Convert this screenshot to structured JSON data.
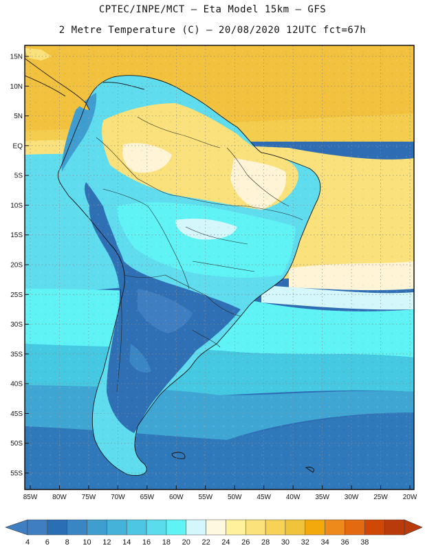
{
  "title_line1": "CPTEC/INPE/MCT –  Eta Model 15km – GFS",
  "title_line2": "2 Metre Temperature (C) – 20/08/2020 12UTC fct=67h",
  "lon_ticks": [
    {
      "value": -85,
      "label": "85W"
    },
    {
      "value": -80,
      "label": "80W"
    },
    {
      "value": -75,
      "label": "75W"
    },
    {
      "value": -70,
      "label": "70W"
    },
    {
      "value": -65,
      "label": "65W"
    },
    {
      "value": -60,
      "label": "60W"
    },
    {
      "value": -55,
      "label": "55W"
    },
    {
      "value": -50,
      "label": "50W"
    },
    {
      "value": -45,
      "label": "45W"
    },
    {
      "value": -40,
      "label": "40W"
    },
    {
      "value": -35,
      "label": "35W"
    },
    {
      "value": -30,
      "label": "30W"
    },
    {
      "value": -25,
      "label": "25W"
    },
    {
      "value": -20,
      "label": "20W"
    }
  ],
  "lat_ticks": [
    {
      "value": 15,
      "label": "15N"
    },
    {
      "value": 10,
      "label": "10N"
    },
    {
      "value": 5,
      "label": "5N"
    },
    {
      "value": 0,
      "label": "EQ"
    },
    {
      "value": -5,
      "label": "5S"
    },
    {
      "value": -10,
      "label": "10S"
    },
    {
      "value": -15,
      "label": "15S"
    },
    {
      "value": -20,
      "label": "20S"
    },
    {
      "value": -25,
      "label": "25S"
    },
    {
      "value": -30,
      "label": "30S"
    },
    {
      "value": -35,
      "label": "35S"
    },
    {
      "value": -40,
      "label": "40S"
    },
    {
      "value": -45,
      "label": "45S"
    },
    {
      "value": -50,
      "label": "50S"
    },
    {
      "value": -55,
      "label": "55S"
    }
  ],
  "colorbar": {
    "labels": [
      "4",
      "6",
      "8",
      "10",
      "12",
      "14",
      "16",
      "18",
      "20",
      "22",
      "24",
      "26",
      "28",
      "30",
      "32",
      "34",
      "36",
      "38"
    ],
    "colors": [
      "#3f7ec0",
      "#2a6fb5",
      "#3a86c4",
      "#3f9ecf",
      "#45b3d9",
      "#4cc6e3",
      "#5adcec",
      "#5ff3f5",
      "#d4f7fc",
      "#fff8e0",
      "#fff29a",
      "#fbe27a",
      "#f6d257",
      "#f0c43a",
      "#f3a80c",
      "#ee8a1c",
      "#e46a12",
      "#d14806",
      "#b93a0a"
    ],
    "low_color": "#3f7ec0",
    "high_color": "#b93a0a"
  }
}
